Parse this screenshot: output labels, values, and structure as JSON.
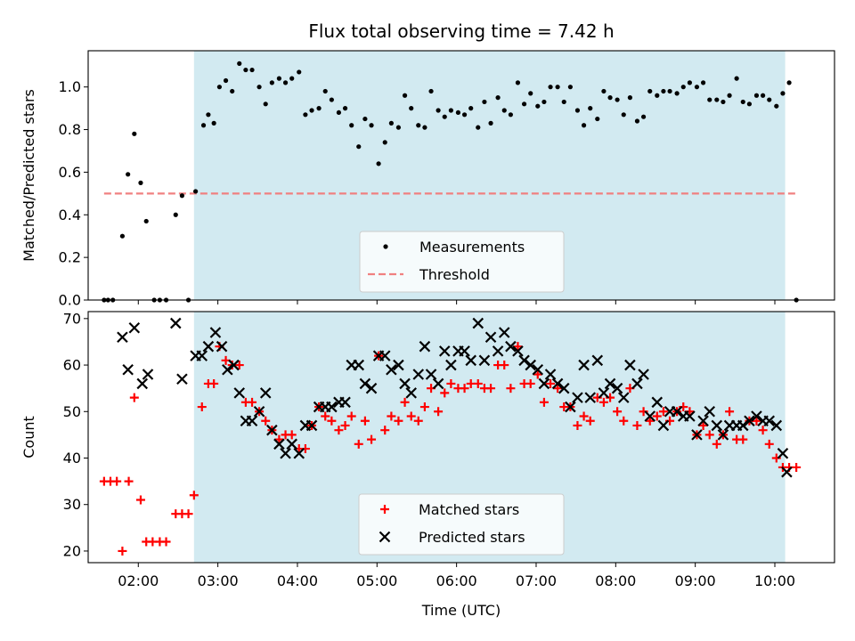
{
  "title": "Flux total observing time = 7.42 h",
  "colors": {
    "shade": "#add8e6",
    "threshold": "#f08080",
    "matched": "#ff0000",
    "predicted": "#000000",
    "measurement": "#000000"
  },
  "chart_data": [
    {
      "type": "scatter",
      "ylabel": "Matched/Predicted stars",
      "xlabel": "",
      "xlim": [
        1.37,
        10.75
      ],
      "ylim": [
        0.0,
        1.17
      ],
      "yticks": [
        "0.0",
        "0.2",
        "0.4",
        "0.6",
        "0.8",
        "1.0"
      ],
      "ytick_values": [
        0.0,
        0.2,
        0.4,
        0.6,
        0.8,
        1.0
      ],
      "observing_window": [
        2.7,
        10.13
      ],
      "threshold": {
        "name": "Threshold",
        "value": 0.5,
        "x_range": [
          1.57,
          10.27
        ]
      },
      "legend": {
        "position": "lower center",
        "entries": [
          "Measurements",
          "Threshold"
        ]
      },
      "series": [
        {
          "name": "Measurements",
          "x": [
            1.57,
            1.62,
            1.68,
            1.8,
            1.87,
            1.95,
            2.03,
            2.1,
            2.2,
            2.27,
            2.35,
            2.47,
            2.55,
            2.63,
            2.72,
            2.82,
            2.88,
            2.95,
            3.02,
            3.1,
            3.18,
            3.27,
            3.35,
            3.43,
            3.52,
            3.6,
            3.68,
            3.77,
            3.85,
            3.93,
            4.02,
            4.1,
            4.18,
            4.27,
            4.35,
            4.43,
            4.52,
            4.6,
            4.68,
            4.77,
            4.85,
            4.93,
            5.02,
            5.1,
            5.18,
            5.27,
            5.35,
            5.43,
            5.52,
            5.6,
            5.68,
            5.77,
            5.85,
            5.93,
            6.02,
            6.1,
            6.18,
            6.27,
            6.35,
            6.43,
            6.52,
            6.6,
            6.68,
            6.77,
            6.85,
            6.93,
            7.02,
            7.1,
            7.18,
            7.27,
            7.35,
            7.43,
            7.52,
            7.6,
            7.68,
            7.77,
            7.85,
            7.93,
            8.02,
            8.1,
            8.18,
            8.27,
            8.35,
            8.43,
            8.52,
            8.6,
            8.68,
            8.77,
            8.85,
            8.93,
            9.02,
            9.1,
            9.18,
            9.27,
            9.35,
            9.43,
            9.52,
            9.6,
            9.68,
            9.77,
            9.85,
            9.93,
            10.02,
            10.1,
            10.18,
            10.27
          ],
          "y": [
            0.0,
            0.0,
            0.0,
            0.3,
            0.59,
            0.78,
            0.55,
            0.37,
            0.0,
            0.0,
            0.0,
            0.4,
            0.49,
            0.0,
            0.51,
            0.82,
            0.87,
            0.83,
            1.0,
            1.03,
            0.98,
            1.11,
            1.08,
            1.08,
            1.0,
            0.92,
            1.02,
            1.04,
            1.02,
            1.04,
            1.07,
            0.87,
            0.89,
            0.9,
            0.98,
            0.94,
            0.88,
            0.9,
            0.82,
            0.72,
            0.85,
            0.82,
            0.64,
            0.74,
            0.83,
            0.81,
            0.96,
            0.9,
            0.82,
            0.81,
            0.98,
            0.89,
            0.86,
            0.89,
            0.88,
            0.87,
            0.9,
            0.81,
            0.93,
            0.83,
            0.95,
            0.89,
            0.87,
            1.02,
            0.92,
            0.97,
            0.91,
            0.93,
            1.0,
            1.0,
            0.93,
            1.0,
            0.89,
            0.82,
            0.9,
            0.85,
            0.98,
            0.95,
            0.94,
            0.87,
            0.95,
            0.84,
            0.86,
            0.98,
            0.96,
            0.98,
            0.98,
            0.97,
            1.0,
            1.02,
            1.0,
            1.02,
            0.94,
            0.94,
            0.93,
            0.96,
            1.04,
            0.93,
            0.92,
            0.96,
            0.96,
            0.94,
            0.91,
            0.97,
            1.02,
            0.0
          ]
        }
      ]
    },
    {
      "type": "scatter",
      "ylabel": "Count",
      "xlabel": "Time (UTC)",
      "xlim": [
        1.37,
        10.75
      ],
      "ylim": [
        17.5,
        71.5
      ],
      "yticks": [
        "20",
        "30",
        "40",
        "50",
        "60",
        "70"
      ],
      "ytick_values": [
        20,
        30,
        40,
        50,
        60,
        70
      ],
      "xticks": [
        "02:00",
        "03:00",
        "04:00",
        "05:00",
        "06:00",
        "07:00",
        "08:00",
        "09:00",
        "10:00"
      ],
      "xtick_values": [
        2,
        3,
        4,
        5,
        6,
        7,
        8,
        9,
        10
      ],
      "observing_window": [
        2.7,
        10.13
      ],
      "legend": {
        "position": "lower center",
        "entries": [
          "Matched stars",
          "Predicted stars"
        ]
      },
      "series": [
        {
          "name": "Matched stars",
          "marker": "+",
          "x": [
            1.57,
            1.65,
            1.73,
            1.8,
            1.88,
            1.95,
            2.03,
            2.1,
            2.18,
            2.27,
            2.35,
            2.47,
            2.55,
            2.63,
            2.7,
            2.8,
            2.88,
            2.95,
            3.02,
            3.1,
            3.18,
            3.27,
            3.35,
            3.43,
            3.52,
            3.6,
            3.68,
            3.77,
            3.85,
            3.93,
            4.02,
            4.1,
            4.18,
            4.27,
            4.35,
            4.43,
            4.52,
            4.6,
            4.68,
            4.77,
            4.85,
            4.93,
            5.02,
            5.1,
            5.18,
            5.27,
            5.35,
            5.43,
            5.52,
            5.6,
            5.68,
            5.77,
            5.85,
            5.93,
            6.02,
            6.1,
            6.18,
            6.27,
            6.35,
            6.43,
            6.52,
            6.6,
            6.68,
            6.77,
            6.85,
            6.93,
            7.02,
            7.1,
            7.18,
            7.27,
            7.35,
            7.43,
            7.52,
            7.6,
            7.68,
            7.77,
            7.85,
            7.93,
            8.02,
            8.1,
            8.18,
            8.27,
            8.35,
            8.43,
            8.52,
            8.6,
            8.68,
            8.77,
            8.85,
            8.93,
            9.02,
            9.1,
            9.18,
            9.27,
            9.35,
            9.43,
            9.52,
            9.6,
            9.68,
            9.77,
            9.85,
            9.93,
            10.02,
            10.1,
            10.18,
            10.27
          ],
          "y": [
            35,
            35,
            35,
            20,
            35,
            53,
            31,
            22,
            22,
            22,
            22,
            28,
            28,
            28,
            32,
            51,
            56,
            56,
            64,
            61,
            60,
            60,
            52,
            52,
            50,
            48,
            46,
            44,
            45,
            45,
            42,
            42,
            47,
            51,
            49,
            48,
            46,
            47,
            49,
            43,
            48,
            44,
            62,
            46,
            49,
            48,
            52,
            49,
            48,
            51,
            55,
            50,
            54,
            56,
            55,
            55,
            56,
            56,
            55,
            55,
            60,
            60,
            55,
            64,
            56,
            56,
            58,
            52,
            56,
            55,
            51,
            51,
            47,
            49,
            48,
            53,
            52,
            53,
            50,
            48,
            55,
            47,
            50,
            48,
            49,
            50,
            48,
            50,
            51,
            50,
            45,
            47,
            45,
            43,
            45,
            50,
            44,
            44,
            48,
            48,
            46,
            43,
            40,
            38,
            38,
            38
          ]
        },
        {
          "name": "Predicted stars",
          "marker": "x",
          "x": [
            1.8,
            1.87,
            1.95,
            2.05,
            2.12,
            2.47,
            2.55,
            2.72,
            2.8,
            2.88,
            2.97,
            3.05,
            3.12,
            3.2,
            3.27,
            3.35,
            3.43,
            3.52,
            3.6,
            3.68,
            3.77,
            3.85,
            3.93,
            4.02,
            4.1,
            4.18,
            4.27,
            4.35,
            4.43,
            4.52,
            4.6,
            4.68,
            4.77,
            4.85,
            4.93,
            5.02,
            5.1,
            5.18,
            5.27,
            5.35,
            5.43,
            5.52,
            5.6,
            5.68,
            5.77,
            5.85,
            5.93,
            6.02,
            6.1,
            6.18,
            6.27,
            6.35,
            6.43,
            6.52,
            6.6,
            6.68,
            6.77,
            6.85,
            6.93,
            7.02,
            7.1,
            7.18,
            7.27,
            7.35,
            7.43,
            7.52,
            7.6,
            7.68,
            7.77,
            7.85,
            7.93,
            8.02,
            8.1,
            8.18,
            8.27,
            8.35,
            8.43,
            8.52,
            8.6,
            8.68,
            8.77,
            8.85,
            8.93,
            9.02,
            9.1,
            9.18,
            9.27,
            9.35,
            9.43,
            9.52,
            9.6,
            9.68,
            9.77,
            9.85,
            9.93,
            10.02,
            10.1,
            10.15
          ],
          "y": [
            66,
            59,
            68,
            56,
            58,
            69,
            57,
            62,
            62,
            64,
            67,
            64,
            59,
            60,
            54,
            48,
            48,
            50,
            54,
            46,
            43,
            41,
            43,
            41,
            47,
            47,
            51,
            51,
            51,
            52,
            52,
            60,
            60,
            56,
            55,
            62,
            62,
            59,
            60,
            56,
            54,
            58,
            64,
            58,
            56,
            63,
            60,
            63,
            63,
            61,
            69,
            61,
            66,
            63,
            67,
            64,
            63,
            61,
            60,
            59,
            56,
            58,
            56,
            55,
            51,
            53,
            60,
            53,
            61,
            54,
            56,
            55,
            53,
            60,
            56,
            58,
            49,
            52,
            47,
            50,
            50,
            49,
            49,
            45,
            48,
            50,
            47,
            45,
            47,
            47,
            47,
            48,
            49,
            48,
            48,
            47,
            41,
            37
          ]
        }
      ]
    }
  ]
}
